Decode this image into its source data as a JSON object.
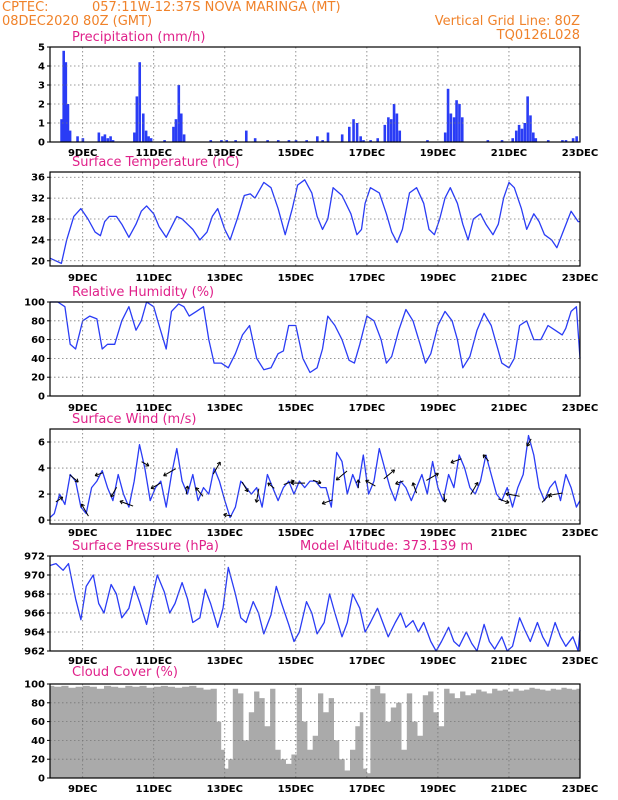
{
  "header": {
    "left1": "CPTEC:",
    "left2": "057:11W-12:37S  NOVA MARINGA (MT)",
    "line2_left": "08DEC2020 80Z (GMT)",
    "vgrid": "Vertical Grid Line: 80Z",
    "code": "TQ0126L028"
  },
  "chart_data": [
    {
      "type": "bar",
      "title": "Precipitation (mm/h)",
      "ylim": [
        0,
        5
      ],
      "yticks": [
        0,
        1,
        2,
        3,
        4,
        5
      ],
      "xlim": [
        8.08,
        23.0
      ],
      "xticks": [
        "9DEC",
        "11DEC",
        "13DEC",
        "15DEC",
        "17DEC",
        "19DEC",
        "21DEC",
        "23DEC"
      ],
      "xtick_values": [
        9,
        11,
        13,
        15,
        17,
        19,
        21,
        23
      ],
      "color": "#2a3cf5",
      "x": [
        8.4,
        8.46,
        8.52,
        8.58,
        8.64,
        8.85,
        9.0,
        9.45,
        9.55,
        9.62,
        9.7,
        9.78,
        9.85,
        10.45,
        10.52,
        10.6,
        10.7,
        10.78,
        10.85,
        10.92,
        11.3,
        11.55,
        11.62,
        11.7,
        11.77,
        11.85,
        12.6,
        12.9,
        13.05,
        13.3,
        13.6,
        13.85,
        14.2,
        14.5,
        14.8,
        15.0,
        15.3,
        15.6,
        15.75,
        15.9,
        16.3,
        16.5,
        16.62,
        16.72,
        16.82,
        16.9,
        17.1,
        17.3,
        17.5,
        17.6,
        17.68,
        17.76,
        17.84,
        17.92,
        18.7,
        19.2,
        19.28,
        19.36,
        19.45,
        19.52,
        19.6,
        19.68,
        20.4,
        20.8,
        21.1,
        21.2,
        21.28,
        21.36,
        21.44,
        21.52,
        21.6,
        21.68,
        21.75,
        22.1,
        22.5,
        22.6,
        22.8,
        22.9
      ],
      "values": [
        1.2,
        4.8,
        4.2,
        2.0,
        0.6,
        0.3,
        0.2,
        0.5,
        0.3,
        0.4,
        0.2,
        0.3,
        0.1,
        0.5,
        2.4,
        4.2,
        1.5,
        0.6,
        0.3,
        0.2,
        0.1,
        0.8,
        1.2,
        3.0,
        1.5,
        0.4,
        0.1,
        0.1,
        0.1,
        0.1,
        0.6,
        0.2,
        0.1,
        0.1,
        0.1,
        0.1,
        0.1,
        0.3,
        0.1,
        0.5,
        0.4,
        0.8,
        1.2,
        1.0,
        0.3,
        0.1,
        0.1,
        0.2,
        0.9,
        1.3,
        1.2,
        2.0,
        1.5,
        0.6,
        0.1,
        0.5,
        2.8,
        1.5,
        1.3,
        2.2,
        2.0,
        1.3,
        0.1,
        0.1,
        0.2,
        0.6,
        0.9,
        0.7,
        1.0,
        2.4,
        1.4,
        0.5,
        0.2,
        0.1,
        0.1,
        0.1,
        0.2,
        0.3
      ]
    },
    {
      "type": "line",
      "title": "Surface Temperature (nC)",
      "ylim": [
        19,
        37
      ],
      "yticks": [
        20,
        24,
        28,
        32,
        36
      ],
      "xlim": [
        8.08,
        23.0
      ],
      "xticks": [
        "9DEC",
        "11DEC",
        "13DEC",
        "15DEC",
        "17DEC",
        "19DEC",
        "21DEC",
        "23DEC"
      ],
      "xtick_values": [
        9,
        11,
        13,
        15,
        17,
        19,
        21,
        23
      ],
      "color": "#2a3cf5",
      "x": [
        8.08,
        8.4,
        8.55,
        8.75,
        8.95,
        9.15,
        9.35,
        9.5,
        9.62,
        9.75,
        9.95,
        10.1,
        10.3,
        10.5,
        10.65,
        10.8,
        11.0,
        11.15,
        11.35,
        11.5,
        11.65,
        11.8,
        11.95,
        12.1,
        12.3,
        12.5,
        12.65,
        12.8,
        13.0,
        13.15,
        13.35,
        13.55,
        13.72,
        13.85,
        14.1,
        14.3,
        14.5,
        14.7,
        14.9,
        15.05,
        15.25,
        15.45,
        15.6,
        15.75,
        15.9,
        16.05,
        16.3,
        16.55,
        16.72,
        16.85,
        16.95,
        17.1,
        17.35,
        17.55,
        17.7,
        17.85,
        18.0,
        18.2,
        18.4,
        18.6,
        18.75,
        18.9,
        19.05,
        19.2,
        19.35,
        19.55,
        19.7,
        19.85,
        20.0,
        20.2,
        20.35,
        20.55,
        20.7,
        20.85,
        21.0,
        21.15,
        21.35,
        21.5,
        21.7,
        21.85,
        22.0,
        22.2,
        22.35,
        22.55,
        22.75,
        22.95,
        23.0
      ],
      "values": [
        20.5,
        19.5,
        24.0,
        28.5,
        30.0,
        28.0,
        25.5,
        24.8,
        27.5,
        28.5,
        28.5,
        27.0,
        24.5,
        27.0,
        29.5,
        30.5,
        29.0,
        26.5,
        24.5,
        26.5,
        28.5,
        28.0,
        27.0,
        26.0,
        24.0,
        25.5,
        28.5,
        30.0,
        26.0,
        24.0,
        28.0,
        32.5,
        32.8,
        32.0,
        35.0,
        34.0,
        30.0,
        25.0,
        30.0,
        34.5,
        35.5,
        33.0,
        28.5,
        26.0,
        28.0,
        34.0,
        32.5,
        29.0,
        25.0,
        26.0,
        31.0,
        34.0,
        33.0,
        29.0,
        25.5,
        23.5,
        26.0,
        33.0,
        34.0,
        31.0,
        26.0,
        25.0,
        28.0,
        32.0,
        34.0,
        31.0,
        27.0,
        24.0,
        28.0,
        29.0,
        27.0,
        25.0,
        27.0,
        32.0,
        35.0,
        34.0,
        30.0,
        26.0,
        29.0,
        27.5,
        25.0,
        24.0,
        22.5,
        26.0,
        29.5,
        27.5,
        27.5
      ]
    },
    {
      "type": "line",
      "title": "Relative Humidity (%)",
      "ylim": [
        0,
        100
      ],
      "yticks": [
        0,
        20,
        40,
        60,
        80,
        100
      ],
      "xlim": [
        8.08,
        23.0
      ],
      "xticks": [
        "9DEC",
        "11DEC",
        "13DEC",
        "15DEC",
        "17DEC",
        "19DEC",
        "21DEC",
        "23DEC"
      ],
      "xtick_values": [
        9,
        11,
        13,
        15,
        17,
        19,
        21,
        23
      ],
      "color": "#2a3cf5",
      "x": [
        8.08,
        8.3,
        8.5,
        8.65,
        8.8,
        9.0,
        9.2,
        9.4,
        9.55,
        9.7,
        9.9,
        10.1,
        10.3,
        10.5,
        10.65,
        10.8,
        11.0,
        11.15,
        11.35,
        11.5,
        11.7,
        11.85,
        12.0,
        12.2,
        12.4,
        12.55,
        12.7,
        12.9,
        13.1,
        13.3,
        13.5,
        13.7,
        13.9,
        14.1,
        14.3,
        14.5,
        14.65,
        14.8,
        15.0,
        15.2,
        15.4,
        15.6,
        15.75,
        15.9,
        16.1,
        16.3,
        16.5,
        16.65,
        16.8,
        17.0,
        17.2,
        17.4,
        17.55,
        17.7,
        17.9,
        18.1,
        18.3,
        18.5,
        18.65,
        18.8,
        19.0,
        19.2,
        19.4,
        19.55,
        19.7,
        19.9,
        20.1,
        20.3,
        20.5,
        20.65,
        20.8,
        21.0,
        21.15,
        21.3,
        21.5,
        21.7,
        21.9,
        22.1,
        22.3,
        22.5,
        22.6,
        22.75,
        22.9,
        23.0
      ],
      "values": [
        100,
        100,
        95,
        55,
        50,
        80,
        85,
        82,
        50,
        55,
        55,
        80,
        95,
        70,
        80,
        100,
        95,
        75,
        50,
        90,
        98,
        95,
        85,
        90,
        95,
        60,
        35,
        35,
        30,
        45,
        65,
        75,
        40,
        28,
        30,
        45,
        48,
        75,
        75,
        40,
        25,
        30,
        50,
        85,
        75,
        60,
        38,
        35,
        55,
        85,
        80,
        60,
        35,
        42,
        70,
        92,
        80,
        55,
        35,
        45,
        75,
        90,
        80,
        60,
        30,
        42,
        70,
        88,
        75,
        55,
        35,
        30,
        40,
        75,
        80,
        60,
        60,
        75,
        70,
        65,
        72,
        90,
        95,
        40
      ]
    },
    {
      "type": "line",
      "title": "Surface Wind (m/s)",
      "ylim": [
        -0.3,
        7
      ],
      "yticks": [
        0,
        2,
        4,
        6
      ],
      "xlim": [
        8.08,
        23.0
      ],
      "xticks": [
        "9DEC",
        "11DEC",
        "13DEC",
        "15DEC",
        "17DEC",
        "19DEC",
        "21DEC",
        "23DEC"
      ],
      "xtick_values": [
        9,
        11,
        13,
        15,
        17,
        19,
        21,
        23
      ],
      "color": "#2a3cf5",
      "x": [
        8.08,
        8.2,
        8.35,
        8.5,
        8.65,
        8.8,
        8.95,
        9.1,
        9.25,
        9.4,
        9.55,
        9.7,
        9.85,
        10.0,
        10.15,
        10.3,
        10.45,
        10.6,
        10.75,
        10.9,
        11.05,
        11.2,
        11.35,
        11.5,
        11.65,
        11.8,
        11.95,
        12.1,
        12.25,
        12.4,
        12.55,
        12.7,
        12.85,
        13.0,
        13.15,
        13.3,
        13.45,
        13.6,
        13.75,
        13.9,
        14.05,
        14.2,
        14.35,
        14.5,
        14.65,
        14.8,
        14.95,
        15.1,
        15.25,
        15.4,
        15.55,
        15.7,
        15.85,
        16.0,
        16.15,
        16.3,
        16.45,
        16.6,
        16.75,
        16.9,
        17.05,
        17.2,
        17.35,
        17.5,
        17.65,
        17.8,
        17.95,
        18.1,
        18.25,
        18.4,
        18.55,
        18.7,
        18.85,
        19.0,
        19.15,
        19.3,
        19.45,
        19.6,
        19.75,
        19.9,
        20.05,
        20.2,
        20.35,
        20.5,
        20.65,
        20.8,
        20.95,
        21.1,
        21.25,
        21.4,
        21.55,
        21.7,
        21.85,
        22.0,
        22.15,
        22.3,
        22.45,
        22.6,
        22.75,
        22.9,
        23.0
      ],
      "values": [
        0.2,
        0.5,
        2.0,
        1.2,
        3.5,
        3.0,
        1.0,
        0.5,
        2.5,
        3.0,
        3.8,
        2.5,
        1.5,
        3.5,
        2.0,
        1.0,
        3.0,
        5.8,
        4.0,
        1.5,
        2.5,
        3.0,
        1.0,
        3.5,
        5.5,
        3.0,
        2.0,
        3.5,
        1.5,
        2.5,
        2.0,
        4.0,
        3.0,
        1.5,
        0.2,
        1.0,
        3.0,
        2.5,
        2.0,
        2.5,
        1.0,
        3.5,
        2.5,
        1.5,
        2.5,
        3.0,
        2.0,
        3.0,
        2.5,
        3.0,
        3.0,
        2.5,
        2.5,
        1.0,
        5.2,
        4.5,
        2.0,
        3.5,
        2.5,
        5.0,
        2.0,
        3.0,
        5.5,
        4.0,
        2.5,
        1.5,
        3.0,
        2.5,
        1.5,
        2.5,
        3.5,
        2.0,
        4.5,
        2.5,
        1.5,
        3.5,
        2.5,
        5.0,
        4.0,
        2.5,
        2.0,
        3.0,
        5.0,
        3.5,
        2.0,
        1.5,
        2.5,
        1.0,
        2.5,
        3.5,
        6.5,
        5.0,
        2.5,
        1.5,
        2.5,
        3.0,
        1.5,
        3.5,
        2.5,
        1.0,
        1.5
      ]
    },
    {
      "type": "line",
      "title": "Surface Pressure (hPa)",
      "annotation": "Model Altitude: 373.139 m",
      "ylim": [
        962,
        972
      ],
      "yticks": [
        962,
        964,
        966,
        968,
        970,
        972
      ],
      "xlim": [
        8.08,
        23.0
      ],
      "xticks": [
        "9DEC",
        "11DEC",
        "13DEC",
        "15DEC",
        "17DEC",
        "19DEC",
        "21DEC",
        "23DEC"
      ],
      "xtick_values": [
        9,
        11,
        13,
        15,
        17,
        19,
        21,
        23
      ],
      "color": "#2a3cf5",
      "x": [
        8.08,
        8.25,
        8.45,
        8.6,
        8.8,
        8.95,
        9.1,
        9.3,
        9.45,
        9.6,
        9.8,
        9.95,
        10.1,
        10.3,
        10.45,
        10.6,
        10.8,
        10.95,
        11.1,
        11.3,
        11.45,
        11.6,
        11.8,
        11.95,
        12.1,
        12.3,
        12.45,
        12.6,
        12.8,
        12.95,
        13.1,
        13.3,
        13.45,
        13.6,
        13.8,
        13.95,
        14.1,
        14.3,
        14.45,
        14.6,
        14.8,
        14.95,
        15.1,
        15.3,
        15.45,
        15.6,
        15.8,
        15.95,
        16.1,
        16.3,
        16.45,
        16.6,
        16.8,
        16.95,
        17.1,
        17.3,
        17.45,
        17.6,
        17.8,
        17.95,
        18.1,
        18.3,
        18.45,
        18.6,
        18.8,
        18.95,
        19.1,
        19.3,
        19.45,
        19.6,
        19.8,
        19.95,
        20.1,
        20.3,
        20.45,
        20.6,
        20.8,
        20.95,
        21.1,
        21.3,
        21.45,
        21.6,
        21.8,
        21.95,
        22.1,
        22.3,
        22.45,
        22.6,
        22.8,
        22.95,
        23.0
      ],
      "values": [
        971.0,
        971.2,
        970.5,
        971.2,
        967.5,
        965.3,
        968.8,
        970.0,
        967.0,
        966.0,
        969.0,
        968.0,
        965.5,
        966.5,
        968.8,
        967.2,
        964.8,
        967.5,
        970.0,
        968.2,
        966.0,
        967.0,
        969.2,
        967.5,
        965.0,
        965.5,
        968.5,
        967.0,
        964.5,
        966.5,
        970.8,
        968.0,
        965.5,
        965.0,
        967.2,
        966.0,
        963.8,
        965.8,
        968.8,
        967.0,
        964.8,
        963.0,
        964.0,
        967.2,
        966.0,
        963.8,
        965.0,
        968.0,
        966.0,
        963.5,
        965.0,
        968.0,
        966.5,
        964.0,
        965.0,
        966.5,
        965.0,
        963.5,
        965.0,
        966.0,
        964.5,
        965.2,
        964.0,
        965.0,
        963.0,
        962.0,
        963.0,
        964.5,
        963.0,
        962.5,
        964.0,
        962.8,
        962.0,
        964.8,
        963.0,
        962.2,
        963.5,
        962.0,
        962.5,
        965.5,
        964.2,
        963.0,
        965.0,
        963.5,
        962.5,
        965.0,
        963.5,
        962.5,
        963.5,
        962.0,
        964.2
      ]
    },
    {
      "type": "area",
      "title": "Cloud Cover (%)",
      "ylim": [
        0,
        100
      ],
      "yticks": [
        0,
        20,
        40,
        60,
        80,
        100
      ],
      "xlim": [
        8.08,
        23.0
      ],
      "xticks": [
        "9DEC",
        "11DEC",
        "13DEC",
        "15DEC",
        "17DEC",
        "19DEC",
        "21DEC",
        "23DEC"
      ],
      "xtick_values": [
        9,
        11,
        13,
        15,
        17,
        19,
        21,
        23
      ],
      "color": "#aaaaaa",
      "x": [
        8.1,
        8.3,
        8.5,
        8.7,
        8.9,
        9.1,
        9.3,
        9.5,
        9.7,
        9.9,
        10.1,
        10.3,
        10.5,
        10.7,
        10.9,
        11.1,
        11.3,
        11.5,
        11.7,
        11.9,
        12.1,
        12.3,
        12.5,
        12.7,
        12.85,
        12.95,
        13.05,
        13.15,
        13.3,
        13.45,
        13.6,
        13.75,
        13.9,
        14.05,
        14.2,
        14.35,
        14.5,
        14.65,
        14.8,
        14.95,
        15.1,
        15.25,
        15.4,
        15.55,
        15.7,
        15.85,
        16.0,
        16.15,
        16.3,
        16.45,
        16.6,
        16.75,
        16.85,
        16.95,
        17.05,
        17.15,
        17.3,
        17.45,
        17.6,
        17.75,
        17.9,
        18.05,
        18.2,
        18.35,
        18.5,
        18.65,
        18.8,
        18.95,
        19.1,
        19.25,
        19.4,
        19.55,
        19.7,
        19.85,
        20.0,
        20.15,
        20.3,
        20.45,
        20.6,
        20.75,
        20.9,
        21.05,
        21.2,
        21.35,
        21.5,
        21.65,
        21.8,
        21.95,
        22.1,
        22.25,
        22.4,
        22.55,
        22.7,
        22.85,
        22.95
      ],
      "values": [
        98,
        97,
        98,
        96,
        97,
        98,
        97,
        95,
        98,
        97,
        96,
        98,
        97,
        98,
        96,
        97,
        98,
        97,
        96,
        97,
        98,
        96,
        94,
        95,
        60,
        30,
        10,
        20,
        95,
        90,
        40,
        70,
        92,
        85,
        55,
        95,
        30,
        20,
        15,
        25,
        96,
        60,
        30,
        45,
        90,
        70,
        85,
        40,
        20,
        8,
        30,
        55,
        70,
        10,
        5,
        95,
        98,
        90,
        60,
        75,
        80,
        30,
        90,
        60,
        45,
        88,
        92,
        70,
        55,
        95,
        90,
        85,
        92,
        88,
        90,
        94,
        92,
        90,
        95,
        93,
        94,
        92,
        95,
        93,
        94,
        96,
        95,
        94,
        93,
        95,
        94,
        96,
        95,
        94,
        95
      ]
    }
  ]
}
